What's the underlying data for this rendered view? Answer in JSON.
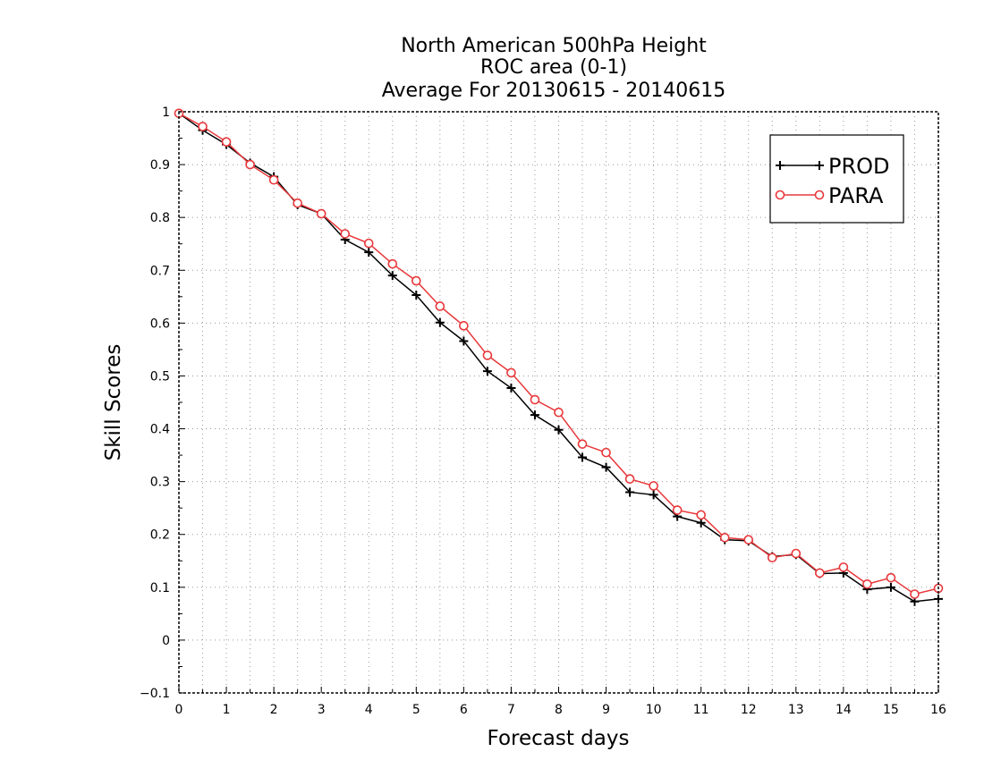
{
  "chart_data": {
    "type": "line",
    "title_lines": [
      "North American 500hPa Height",
      "ROC area (0-1)",
      "Average For 20130615 - 20140615"
    ],
    "xlabel": "Forecast days",
    "ylabel": "Skill Scores",
    "xlim": [
      0,
      16
    ],
    "ylim": [
      -0.1,
      1
    ],
    "x_ticks": [
      0,
      1,
      2,
      3,
      4,
      5,
      6,
      7,
      8,
      9,
      10,
      11,
      12,
      13,
      14,
      15,
      16
    ],
    "x_tick_labels": [
      "0",
      "1",
      "2",
      "3",
      "4",
      "5",
      "6",
      "7",
      "8",
      "9",
      "10",
      "11",
      "12",
      "13",
      "14",
      "15",
      "16"
    ],
    "y_ticks": [
      -0.1,
      0,
      0.1,
      0.2,
      0.3,
      0.4,
      0.5,
      0.6,
      0.7,
      0.8,
      0.9,
      1
    ],
    "y_tick_labels": [
      "−0.1",
      "0",
      "0.1",
      "0.2",
      "0.3",
      "0.4",
      "0.5",
      "0.6",
      "0.7",
      "0.8",
      "0.9",
      "1"
    ],
    "grid": true,
    "legend_position": "top-right",
    "x": [
      0,
      0.5,
      1,
      1.5,
      2,
      2.5,
      3,
      3.5,
      4,
      4.5,
      5,
      5.5,
      6,
      6.5,
      7,
      7.5,
      8,
      8.5,
      9,
      9.5,
      10,
      10.5,
      11,
      11.5,
      12,
      12.5,
      13,
      13.5,
      14,
      14.5,
      15,
      15.5,
      16
    ],
    "series": [
      {
        "name": "PROD",
        "color": "#000000",
        "marker": "plus",
        "values": [
          0.997,
          0.965,
          0.938,
          0.903,
          0.877,
          0.824,
          0.807,
          0.758,
          0.734,
          0.69,
          0.653,
          0.601,
          0.566,
          0.509,
          0.477,
          0.426,
          0.398,
          0.346,
          0.327,
          0.28,
          0.275,
          0.234,
          0.222,
          0.19,
          0.188,
          0.158,
          0.162,
          0.126,
          0.127,
          0.096,
          0.1,
          0.073,
          0.078
        ]
      },
      {
        "name": "PARA",
        "color": "#e8383b",
        "marker": "circle",
        "values": [
          0.997,
          0.972,
          0.943,
          0.9,
          0.871,
          0.827,
          0.807,
          0.769,
          0.751,
          0.712,
          0.68,
          0.632,
          0.595,
          0.539,
          0.506,
          0.455,
          0.431,
          0.371,
          0.355,
          0.305,
          0.292,
          0.246,
          0.237,
          0.194,
          0.19,
          0.156,
          0.164,
          0.127,
          0.138,
          0.106,
          0.118,
          0.087,
          0.098
        ]
      }
    ]
  }
}
